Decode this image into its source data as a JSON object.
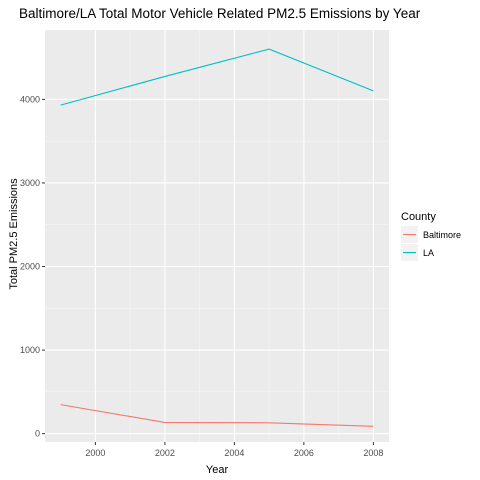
{
  "chart_data": {
    "type": "line",
    "title": "Baltimore/LA Total Motor Vehicle Related PM2.5 Emissions by Year",
    "xlabel": "Year",
    "ylabel": "Total PM2.5 Emissions",
    "x": [
      1999,
      2002,
      2005,
      2008
    ],
    "xlim": [
      1998.55,
      2008.45
    ],
    "ylim": [
      -100,
      4830
    ],
    "x_ticks": [
      2000,
      2002,
      2004,
      2006,
      2008
    ],
    "y_ticks": [
      0,
      1000,
      2000,
      3000,
      4000
    ],
    "x_tick_labels": [
      "2000",
      "2002",
      "2004",
      "2006",
      "2008"
    ],
    "y_tick_labels": [
      "0",
      "1000",
      "2000",
      "3000",
      "4000"
    ],
    "grid": true,
    "legend": {
      "title": "County",
      "placement": "right"
    },
    "series": [
      {
        "name": "Baltimore",
        "color": "#F8766D",
        "values": [
          347,
          134,
          130,
          88
        ]
      },
      {
        "name": "LA",
        "color": "#00BFC4",
        "values": [
          3931,
          4274,
          4601,
          4101
        ]
      }
    ]
  }
}
